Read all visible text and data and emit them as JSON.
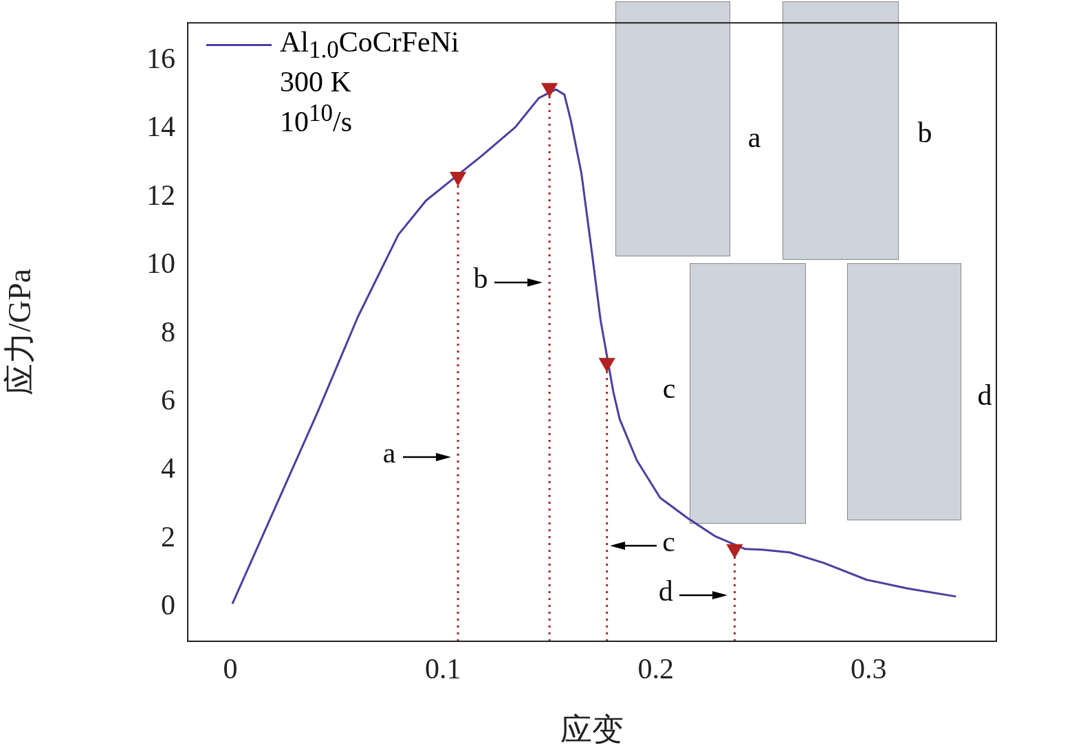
{
  "chart_data": {
    "type": "line",
    "xlabel": "应变",
    "ylabel": "应力/GPa",
    "xlim": [
      -0.02,
      0.36
    ],
    "xticks": [
      0,
      0.1,
      0.2,
      0.3
    ],
    "ylim": [
      -1,
      17.1
    ],
    "yticks": [
      0,
      2,
      4,
      6,
      8,
      10,
      12,
      14,
      16
    ],
    "grid": false,
    "legend": "top left",
    "line_style": "solid",
    "series": [
      {
        "name": "Al$_{1.0}$CoCrFeNi",
        "color": "#4b3fa0",
        "marker": "none",
        "x": [
          0.001,
          0.021,
          0.041,
          0.06,
          0.079,
          0.092,
          0.102,
          0.118,
          0.134,
          0.145,
          0.153,
          0.157,
          0.16,
          0.165,
          0.17,
          0.174,
          0.18,
          0.183,
          0.191,
          0.202,
          0.215,
          0.228,
          0.242,
          0.25,
          0.263,
          0.279,
          0.299,
          0.318,
          0.341
        ],
        "values": [
          0.1,
          2.9,
          5.7,
          8.5,
          10.9,
          11.9,
          12.4,
          13.2,
          14.05,
          14.9,
          15.15,
          15.0,
          14.25,
          12.7,
          10.35,
          8.4,
          6.3,
          5.5,
          4.3,
          3.2,
          2.6,
          2.07,
          1.7,
          1.68,
          1.6,
          1.29,
          0.8,
          0.55,
          0.31
        ]
      },
      {
        "type": "scatter",
        "color": "#b22222",
        "marker": "triangle",
        "x": [
          0.107,
          0.15,
          0.177,
          0.237
        ],
        "values": [
          12.6,
          15.2,
          7.15,
          1.7
        ]
      }
    ],
    "ref_lines": [
      {
        "axis": "x",
        "value": 0.107,
        "color": "#b22222",
        "line_style": "dotted"
      },
      {
        "axis": "x",
        "value": 0.15,
        "color": "#b22222",
        "line_style": "dotted"
      },
      {
        "axis": "x",
        "value": 0.177,
        "color": "#b22222",
        "line_style": "dotted"
      },
      {
        "axis": "x",
        "value": 0.237,
        "color": "#b22222",
        "line_style": "dotted"
      }
    ],
    "annotations": [
      {
        "text": "a",
        "x": 0.107,
        "y": 4.4
      },
      {
        "text": "b",
        "x": 0.15,
        "y": 9.5
      },
      {
        "text": "c",
        "x": 0.177,
        "y": 1.8
      },
      {
        "text": "d",
        "x": 0.237,
        "y": 0.35
      },
      "a",
      "b",
      "c",
      "d",
      "300 K",
      "10$^{10}$/s"
    ]
  }
}
